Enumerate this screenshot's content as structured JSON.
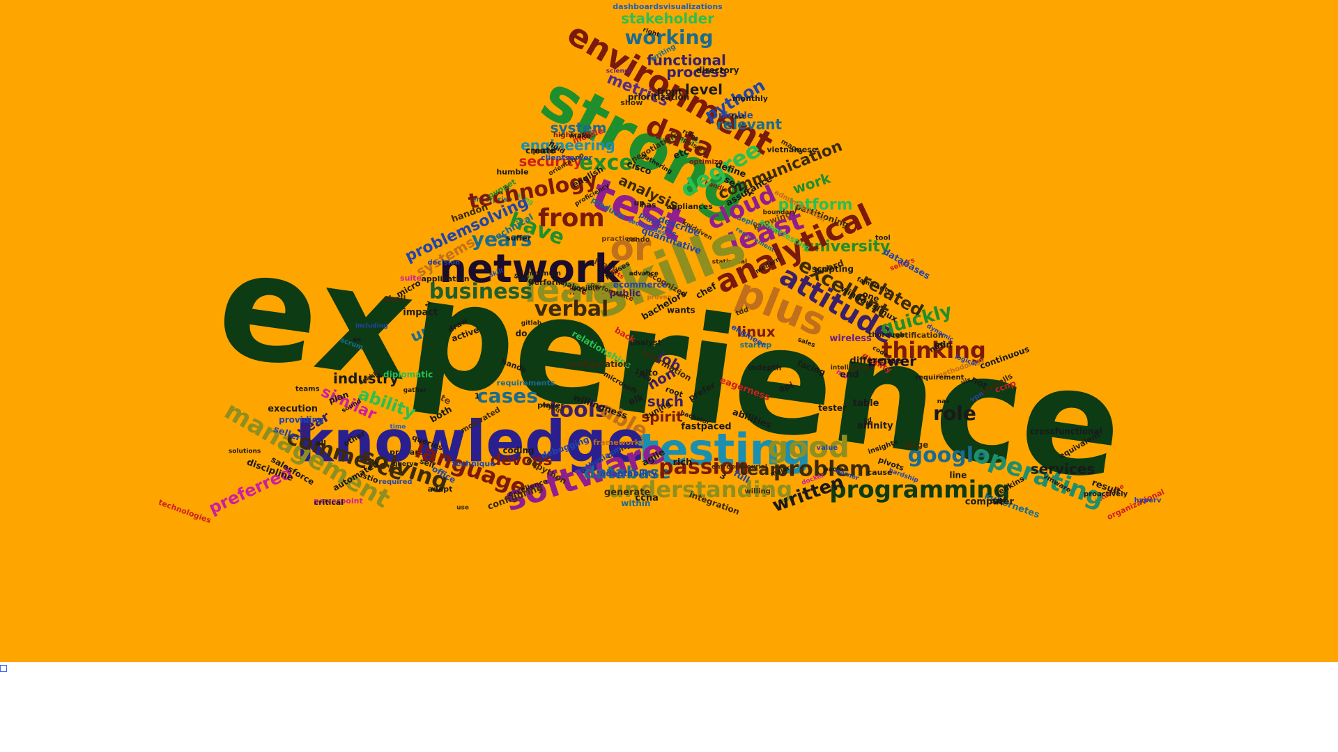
{
  "page": {
    "background": "#FFFFFF",
    "cloud_background": "#FFA500"
  },
  "word_cloud": [
    {
      "text": "dashboardsvisualizations",
      "color": "#1f5fbf"
    },
    {
      "text": "stakeholder",
      "color": "#2bbf52"
    },
    {
      "text": "working",
      "color": "#1b6b8f"
    },
    {
      "text": "environment",
      "color": "#7a1a0c"
    },
    {
      "text": "functional",
      "color": "#3b1f6b"
    },
    {
      "text": "process",
      "color": "#3b1f6b"
    },
    {
      "text": "level",
      "color": "#1a1a1a"
    },
    {
      "text": "proven",
      "color": "#c0701c"
    },
    {
      "text": "reports",
      "color": "#cc1f1f"
    },
    {
      "text": "deployment",
      "color": "#1b6b8f"
    },
    {
      "text": "development",
      "color": "#2bbf52"
    },
    {
      "text": "metrics",
      "color": "#5a2a88"
    },
    {
      "text": "strong",
      "color": "#1f8f2e"
    },
    {
      "text": "data",
      "color": "#7a1a0c"
    },
    {
      "text": "python",
      "color": "#2244aa"
    },
    {
      "text": "relevant",
      "color": "#1b6b8f"
    },
    {
      "text": "statistical",
      "color": "#3b1f0c"
    },
    {
      "text": "interface",
      "color": "#cc1f1f"
    },
    {
      "text": "effectively",
      "color": "#7a1a0c"
    },
    {
      "text": "powerpoint",
      "color": "#cc1fa0"
    },
    {
      "text": "handle",
      "color": "#7a1a0c"
    },
    {
      "text": "creating",
      "color": "#2bbf52"
    },
    {
      "text": "system",
      "color": "#1b6b8f"
    },
    {
      "text": "engineering",
      "color": "#1b8fb0"
    },
    {
      "text": "prepare",
      "color": "#1a1a1a"
    },
    {
      "text": "knowing",
      "color": "#6b3b0c"
    },
    {
      "text": "science",
      "color": "#6b1f8f"
    },
    {
      "text": "wireless",
      "color": "#6b1f8f"
    },
    {
      "text": "highly",
      "color": "#6b3b0c"
    },
    {
      "text": "practices",
      "color": "#6b3b0c"
    },
    {
      "text": "state",
      "color": "#6b3b0c"
    },
    {
      "text": "security",
      "color": "#cc1f1f"
    },
    {
      "text": "excel",
      "color": "#1f8f2e"
    },
    {
      "text": "degree",
      "color": "#2bbf52"
    },
    {
      "text": "communication",
      "color": "#3b2a0c"
    },
    {
      "text": "certification",
      "color": "#3b2a0c"
    },
    {
      "text": "work",
      "color": "#1f8f2e"
    },
    {
      "text": "platform",
      "color": "#2bbf52"
    },
    {
      "text": "enterprise",
      "color": "#1b6b8f"
    },
    {
      "text": "monitoring",
      "color": "#cc1fa0"
    },
    {
      "text": "requirement",
      "color": "#1b6b8f"
    },
    {
      "text": "configure",
      "color": "#3b2a0c"
    },
    {
      "text": "test",
      "color": "#8f1f8f"
    },
    {
      "text": "technology",
      "color": "#7a1a0c"
    },
    {
      "text": "analysis",
      "color": "#3b2a0c"
    },
    {
      "text": "cloud",
      "color": "#8f1f8f"
    },
    {
      "text": "university",
      "color": "#1f8f2e"
    },
    {
      "text": "from",
      "color": "#7a1a0c"
    },
    {
      "text": "have",
      "color": "#1f8f2e"
    },
    {
      "text": "or",
      "color": "#c0701c"
    },
    {
      "text": "least",
      "color": "#8f1f8f"
    },
    {
      "text": "analytical",
      "color": "#7a1a0c"
    },
    {
      "text": "skills",
      "color": "#8f8f1f"
    },
    {
      "text": "years",
      "color": "#1b6b8f"
    },
    {
      "text": "problemsolving",
      "color": "#2244aa"
    },
    {
      "text": "systems",
      "color": "#c0701c"
    },
    {
      "text": "network",
      "color": "#1a0c2a"
    },
    {
      "text": "learn",
      "color": "#8f8f1f"
    },
    {
      "text": "plus",
      "color": "#c0701c"
    },
    {
      "text": "attitude",
      "color": "#3b1f6b"
    },
    {
      "text": "excellent",
      "color": "#3b2a0c"
    },
    {
      "text": "related",
      "color": "#3b2a0c"
    },
    {
      "text": "quickly",
      "color": "#1f8f2e"
    },
    {
      "text": "thinking",
      "color": "#7a1a0c"
    },
    {
      "text": "business",
      "color": "#1f5f2e"
    },
    {
      "text": "verbal",
      "color": "#3b2a0c"
    },
    {
      "text": "unix",
      "color": "#1b6b8f"
    },
    {
      "text": "experience",
      "color": "#0c3b14"
    },
    {
      "text": "linux",
      "color": "#7a1a0c"
    },
    {
      "text": "power",
      "color": "#1a0c2a"
    },
    {
      "text": "industry",
      "color": "#1a1a1a"
    },
    {
      "text": "ability",
      "color": "#2bbf52"
    },
    {
      "text": "similar",
      "color": "#cc1fa0"
    },
    {
      "text": "job",
      "color": "#3b1f6b"
    },
    {
      "text": "non",
      "color": "#3b1f6b"
    },
    {
      "text": "such",
      "color": "#3b1f6b"
    },
    {
      "text": "cases",
      "color": "#1b6b8f"
    },
    {
      "text": "tools",
      "color": "#3b1f6b"
    },
    {
      "text": "able",
      "color": "#c0701c"
    },
    {
      "text": "spirit",
      "color": "#7a1a0c"
    },
    {
      "text": "role",
      "color": "#1a1a1a"
    },
    {
      "text": "knowledge",
      "color": "#2a1f8f"
    },
    {
      "text": "testing",
      "color": "#1b8fb0"
    },
    {
      "text": "good",
      "color": "#8f8f1f"
    },
    {
      "text": "google",
      "color": "#1b6b8f"
    },
    {
      "text": "operating",
      "color": "#1f8f6b"
    },
    {
      "text": "services",
      "color": "#1a1a1a"
    },
    {
      "text": "year",
      "color": "#3b1f6b"
    },
    {
      "text": "management",
      "color": "#8f8f1f"
    },
    {
      "text": "commerce",
      "color": "#3b2a0c"
    },
    {
      "text": "solving",
      "color": "#3b2a0c"
    },
    {
      "text": "language",
      "color": "#7a1a0c"
    },
    {
      "text": "devops",
      "color": "#7a1a0c"
    },
    {
      "text": "software",
      "color": "#8f1f8f"
    },
    {
      "text": "database",
      "color": "#1b6b8f"
    },
    {
      "text": "passion",
      "color": "#7a1a0c"
    },
    {
      "text": "team",
      "color": "#3b2a0c"
    },
    {
      "text": "problem",
      "color": "#3b2a0c"
    },
    {
      "text": "understanding",
      "color": "#8f8f1f"
    },
    {
      "text": "programming",
      "color": "#0c3b14"
    },
    {
      "text": "written",
      "color": "#7a1a0c"
    },
    {
      "text": "preferred",
      "color": "#cc1fa0"
    },
    {
      "text": "technologies",
      "color": "#cc1f1f"
    },
    {
      "text": "organizational",
      "color": "#cc1f1f"
    },
    {
      "text": "crossfunctional",
      "color": "#1a1a1a"
    },
    {
      "text": "execution",
      "color": "#1a1a1a"
    },
    {
      "text": "quality",
      "color": "#cc1f1f"
    },
    {
      "text": "time",
      "color": "#1f5fbf"
    },
    {
      "text": "fastpaced",
      "color": "#1a1a1a"
    },
    {
      "text": "writing",
      "color": "#1b6b8f"
    },
    {
      "text": "techniques",
      "color": "#1f5fbf"
    },
    {
      "text": "microsoft",
      "color": "#1a1a1a"
    },
    {
      "text": "thorough",
      "color": "#1a1a1a"
    },
    {
      "text": "solutions",
      "color": "#1a1a1a"
    },
    {
      "text": "products",
      "color": "#1b6b8f"
    },
    {
      "text": "kpidriven",
      "color": "#3b2a0c"
    },
    {
      "text": "word",
      "color": "#3b2a0c"
    },
    {
      "text": "generate",
      "color": "#3b2a0c"
    },
    {
      "text": "information",
      "color": "#3b2a0c"
    },
    {
      "text": "integration",
      "color": "#3b2a0c"
    },
    {
      "text": "partitioning",
      "color": "#3b2a0c"
    },
    {
      "text": "quantitative",
      "color": "#2244aa"
    },
    {
      "text": "within",
      "color": "#1b6b8f"
    },
    {
      "text": "scrum",
      "color": "#1b6b8f"
    },
    {
      "text": "technique",
      "color": "#2244aa"
    },
    {
      "text": "technical",
      "color": "#1b6b8f"
    },
    {
      "text": "negotiation",
      "color": "#3b2a0c"
    },
    {
      "text": "public",
      "color": "#3b1f6b"
    },
    {
      "text": "hightraffic",
      "color": "#7a1a0c"
    },
    {
      "text": "optimize",
      "color": "#7a1a0c"
    },
    {
      "text": "sellers",
      "color": "#cc1f1f"
    },
    {
      "text": "vmware",
      "color": "#1a1a1a"
    },
    {
      "text": "willing",
      "color": "#3b2a0c"
    },
    {
      "text": "methodology",
      "color": "#c0701c"
    },
    {
      "text": "puppet",
      "color": "#1f8f2e"
    },
    {
      "text": "firewalls",
      "color": "#3b2a0c"
    },
    {
      "text": "boundary",
      "color": "#3b2a0c"
    },
    {
      "text": "gopython",
      "color": "#3b2a0c"
    },
    {
      "text": "frameworks",
      "color": "#c0701c"
    },
    {
      "text": "configuring",
      "color": "#3b2a0c"
    },
    {
      "text": "show",
      "color": "#3b2a0c"
    },
    {
      "text": "suite",
      "color": "#cc1fa0"
    },
    {
      "text": "startup",
      "color": "#1b6b8f"
    },
    {
      "text": "relationships",
      "color": "#2bbf52"
    },
    {
      "text": "kubernetes",
      "color": "#1b6b8f"
    },
    {
      "text": "entrepreneurial",
      "color": "#3b2a0c"
    },
    {
      "text": "administration",
      "color": "#c0701c"
    },
    {
      "text": "intelligence",
      "color": "#3b2a0c"
    },
    {
      "text": "recognized",
      "color": "#3b2a0c"
    },
    {
      "text": "motivated",
      "color": "#3b2a0c"
    },
    {
      "text": "requirements",
      "color": "#1b6b8f"
    },
    {
      "text": "adhoctesting",
      "color": "#2bbf52"
    },
    {
      "text": "mobile",
      "color": "#cc1f1f"
    },
    {
      "text": "usable",
      "color": "#3b2a0c"
    },
    {
      "text": "orientation",
      "color": "#3b2a0c"
    },
    {
      "text": "performance",
      "color": "#3b2a0c"
    },
    {
      "text": "configuration",
      "color": "#3b2a0c"
    },
    {
      "text": "handon",
      "color": "#3b2a0c"
    },
    {
      "text": "mysql",
      "color": "#3b2a0c"
    },
    {
      "text": "tdd",
      "color": "#3b2a0c"
    },
    {
      "text": "compulsory",
      "color": "#3b2a0c"
    },
    {
      "text": "macro",
      "color": "#3b2a0c"
    },
    {
      "text": "diplomatic",
      "color": "#2bbf52"
    },
    {
      "text": "large",
      "color": "#3b2a0c"
    },
    {
      "text": "use",
      "color": "#3b2a0c"
    },
    {
      "text": "shell",
      "color": "#3b2a0c"
    },
    {
      "text": "difference",
      "color": "#1a1a1a"
    },
    {
      "text": "root",
      "color": "#1a1a1a"
    },
    {
      "text": "fluid",
      "color": "#1a1a1a"
    },
    {
      "text": "sql",
      "color": "#1a1a1a"
    },
    {
      "text": "hands",
      "color": "#1a1a1a"
    },
    {
      "text": "define",
      "color": "#1a1a1a"
    },
    {
      "text": "ccnp",
      "color": "#cc1f1f"
    },
    {
      "text": "cando",
      "color": "#3b2a0c"
    },
    {
      "text": "decision",
      "color": "#2244aa"
    },
    {
      "text": "skill",
      "color": "#2244aa"
    },
    {
      "text": "jenkins",
      "color": "#1a1a1a"
    },
    {
      "text": "sales",
      "color": "#1a1a1a"
    },
    {
      "text": "insights",
      "color": "#1a1a1a"
    },
    {
      "text": "eagerness",
      "color": "#cc1f1f"
    },
    {
      "text": "debugging",
      "color": "#2244aa"
    },
    {
      "text": "hyperv",
      "color": "#2244aa"
    },
    {
      "text": "paolo",
      "color": "#1a1a1a"
    },
    {
      "text": "seller",
      "color": "#2244aa"
    },
    {
      "text": "ecommerce",
      "color": "#2244aa"
    },
    {
      "text": "providing",
      "color": "#2244aa"
    },
    {
      "text": "including",
      "color": "#2244aa"
    },
    {
      "text": "enthusiasm",
      "color": "#2244aa"
    },
    {
      "text": "clientserver",
      "color": "#2244aa"
    },
    {
      "text": "required",
      "color": "#2244aa"
    },
    {
      "text": "value",
      "color": "#2244aa"
    },
    {
      "text": "engineer",
      "color": "#2244aa"
    },
    {
      "text": "describe",
      "color": "#2244aa"
    },
    {
      "text": "logical",
      "color": "#2244aa"
    },
    {
      "text": "office",
      "color": "#2244aa"
    },
    {
      "text": "learner",
      "color": "#2244aa"
    },
    {
      "text": "assurance",
      "color": "#1a1a1a"
    },
    {
      "text": "facing",
      "color": "#1a1a1a"
    },
    {
      "text": "nimble",
      "color": "#2244aa"
    },
    {
      "text": "familiarity",
      "color": "#1a1a1a"
    },
    {
      "text": "vietnamese",
      "color": "#1a1a1a"
    },
    {
      "text": "platforms",
      "color": "#2244aa"
    },
    {
      "text": "hardship",
      "color": "#2244aa"
    },
    {
      "text": "cisco",
      "color": "#1a1a1a"
    },
    {
      "text": "draw",
      "color": "#1a1a1a"
    },
    {
      "text": "micro",
      "color": "#1a1a1a"
    },
    {
      "text": "create",
      "color": "#1a1a1a"
    },
    {
      "text": "adapt",
      "color": "#1a1a1a"
    },
    {
      "text": "1year",
      "color": "#1a1a1a"
    },
    {
      "text": "ccna",
      "color": "#1a1a1a"
    },
    {
      "text": "code",
      "color": "#1a1a1a"
    },
    {
      "text": "end",
      "color": "#1a1a1a"
    },
    {
      "text": "roles",
      "color": "#1a1a1a"
    },
    {
      "text": "rich",
      "color": "#1a1a1a"
    },
    {
      "text": "ansible",
      "color": "#1a1a1a"
    },
    {
      "text": "analyst",
      "color": "#1a1a1a"
    },
    {
      "text": "docker",
      "color": "#cc1fa0"
    },
    {
      "text": "databases",
      "color": "#2244aa"
    },
    {
      "text": "discipline",
      "color": "#1a1a1a"
    },
    {
      "text": "player",
      "color": "#1a1a1a"
    },
    {
      "text": "teams",
      "color": "#1a1a1a"
    },
    {
      "text": "queries",
      "color": "#1a1a1a"
    },
    {
      "text": "full",
      "color": "#2244aa"
    },
    {
      "text": "vpn",
      "color": "#2244aa"
    },
    {
      "text": "adaptability",
      "color": "#2244aa"
    },
    {
      "text": "dynamic",
      "color": "#2244aa"
    },
    {
      "text": "query",
      "color": "#1a1a1a"
    },
    {
      "text": "pivots",
      "color": "#1a1a1a"
    },
    {
      "text": "impact",
      "color": "#1a1a1a"
    },
    {
      "text": "gather",
      "color": "#1a1a1a"
    },
    {
      "text": "plan",
      "color": "#1a1a1a"
    },
    {
      "text": "coding",
      "color": "#1a1a1a"
    },
    {
      "text": "not",
      "color": "#1a1a1a"
    },
    {
      "text": "chef",
      "color": "#1a1a1a"
    },
    {
      "text": "abilities",
      "color": "#1a1a1a"
    },
    {
      "text": "both",
      "color": "#1a1a1a"
    },
    {
      "text": "agile",
      "color": "#1a1a1a"
    },
    {
      "text": "etc",
      "color": "#1a1a1a"
    },
    {
      "text": "min",
      "color": "#1a1a1a"
    },
    {
      "text": "nas",
      "color": "#1a1a1a"
    },
    {
      "text": "analyze",
      "color": "#1a1a1a"
    },
    {
      "text": "front",
      "color": "#1a1a1a"
    },
    {
      "text": "right",
      "color": "#1a1a1a"
    },
    {
      "text": "indepth",
      "color": "#1a1a1a"
    },
    {
      "text": "other",
      "color": "#1a1a1a"
    },
    {
      "text": "istio",
      "color": "#1a1a1a"
    },
    {
      "text": "affinity",
      "color": "#1a1a1a"
    },
    {
      "text": "one",
      "color": "#1a1a1a"
    },
    {
      "text": "advance",
      "color": "#1a1a1a"
    },
    {
      "text": "new",
      "color": "#1a1a1a"
    },
    {
      "text": "line",
      "color": "#1a1a1a"
    },
    {
      "text": "has",
      "color": "#1a1a1a"
    },
    {
      "text": "cause",
      "color": "#1a1a1a"
    },
    {
      "text": "elk",
      "color": "#1a1a1a"
    },
    {
      "text": "alto",
      "color": "#1a1a1a"
    },
    {
      "text": "back",
      "color": "#cc1f1f"
    },
    {
      "text": "do",
      "color": "#1a1a1a"
    },
    {
      "text": "uis",
      "color": "#1a1a1a"
    },
    {
      "text": "api",
      "color": "#1a1a1a"
    },
    {
      "text": "3",
      "color": "#1a1a1a"
    },
    {
      "text": "ec",
      "color": "#1a1a1a"
    },
    {
      "text": "cd",
      "color": "#1a1a1a"
    },
    {
      "text": "1",
      "color": "#1a1a1a"
    },
    {
      "text": "2",
      "color": "#1a1a1a"
    },
    {
      "text": "all",
      "color": "#1a1a1a"
    },
    {
      "text": "active",
      "color": "#1a1a1a"
    },
    {
      "text": "fast",
      "color": "#1a1a1a"
    },
    {
      "text": "result",
      "color": "#1a1a1a"
    },
    {
      "text": "monthly",
      "color": "#1a1a1a"
    },
    {
      "text": "automated",
      "color": "#1a1a1a"
    },
    {
      "text": "humble",
      "color": "#1a1a1a"
    },
    {
      "text": "tool",
      "color": "#1a1a1a"
    },
    {
      "text": "continuous",
      "color": "#1a1a1a"
    },
    {
      "text": "excellence",
      "color": "#1a1a1a"
    },
    {
      "text": "proficiency",
      "color": "#1a1a1a"
    },
    {
      "text": "willingness",
      "color": "#1a1a1a"
    },
    {
      "text": "english",
      "color": "#1a1a1a"
    },
    {
      "text": "minimum",
      "color": "#1a1a1a"
    },
    {
      "text": "self",
      "color": "#1a1a1a"
    },
    {
      "text": "make",
      "color": "#1a1a1a"
    },
    {
      "text": "scripting",
      "color": "#1a1a1a"
    },
    {
      "text": "suffer",
      "color": "#1a1a1a"
    },
    {
      "text": "computer",
      "color": "#1a1a1a"
    },
    {
      "text": "critical",
      "color": "#1a1a1a"
    },
    {
      "text": "gitlab",
      "color": "#1a1a1a"
    },
    {
      "text": "solid",
      "color": "#1a1a1a"
    },
    {
      "text": "up",
      "color": "#1a1a1a"
    },
    {
      "text": "application",
      "color": "#1a1a1a"
    },
    {
      "text": "paced",
      "color": "#1a1a1a"
    },
    {
      "text": "server",
      "color": "#1a1a1a"
    },
    {
      "text": "wants",
      "color": "#1a1a1a"
    },
    {
      "text": "modern",
      "color": "#1a1a1a"
    },
    {
      "text": "appliances",
      "color": "#1a1a1a"
    },
    {
      "text": "gathering",
      "color": "#1a1a1a"
    },
    {
      "text": "table",
      "color": "#1a1a1a"
    },
    {
      "text": "perform",
      "color": "#1a1a1a"
    },
    {
      "text": "directory",
      "color": "#1a1a1a"
    },
    {
      "text": "salesforce",
      "color": "#1a1a1a"
    },
    {
      "text": "bachelor",
      "color": "#1a1a1a"
    },
    {
      "text": "major",
      "color": "#1a1a1a"
    },
    {
      "text": "tuning",
      "color": "#1a1a1a"
    },
    {
      "text": "prioritization",
      "color": "#1a1a1a"
    },
    {
      "text": "phases",
      "color": "#1a1a1a"
    },
    {
      "text": "bachelors",
      "color": "#1a1a1a"
    },
    {
      "text": "proactively",
      "color": "#1a1a1a"
    },
    {
      "text": "windowslinux",
      "color": "#1a1a1a"
    },
    {
      "text": "equivalent",
      "color": "#1a1a1a"
    },
    {
      "text": "prefer",
      "color": "#1a1a1a"
    },
    {
      "text": "requirement",
      "color": "#1a1a1a"
    },
    {
      "text": "tester",
      "color": "#1a1a1a"
    },
    {
      "text": "sound",
      "color": "#1a1a1a"
    },
    {
      "text": "written",
      "color": "#1a1a1a"
    }
  ]
}
